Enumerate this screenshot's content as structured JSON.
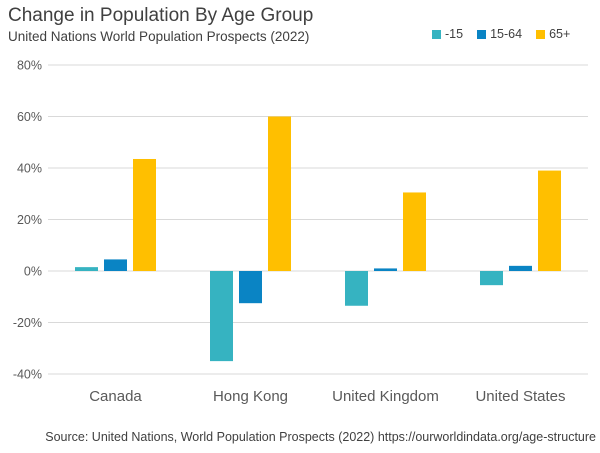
{
  "chart_data": {
    "type": "bar",
    "title": "Change in Population By Age Group",
    "subtitle": "United Nations World Population Prospects (2022)",
    "source": "Source: United Nations, World Population Prospects (2022) https://ourworldindata.org/age-structure",
    "categories": [
      "Canada",
      "Hong Kong",
      "United Kingdom",
      "United States"
    ],
    "series": [
      {
        "name": "-15",
        "color": "#36B3C1",
        "values": [
          1.5,
          -35.0,
          -13.5,
          -5.5
        ]
      },
      {
        "name": "15-64",
        "color": "#0A84C4",
        "values": [
          4.5,
          -12.5,
          1.0,
          2.0
        ]
      },
      {
        "name": "65+",
        "color": "#FFBF00",
        "values": [
          43.5,
          60.0,
          30.5,
          39.0
        ]
      }
    ],
    "ylim": [
      -40,
      80
    ],
    "yticks": [
      -40,
      -20,
      0,
      20,
      40,
      60,
      80
    ],
    "ytick_labels": [
      "-40%",
      "-20%",
      "0%",
      "20%",
      "40%",
      "60%",
      "80%"
    ],
    "xlabel": "",
    "ylabel": "",
    "grid": true,
    "legend_position": "top-right"
  }
}
